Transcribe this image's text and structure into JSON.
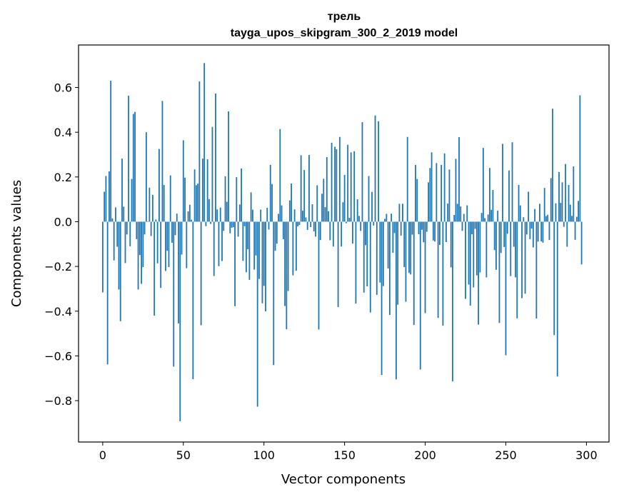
{
  "chart_data": {
    "type": "bar",
    "title_line1": "трель",
    "title_line2": "tayga_upos_skipgram_300_2_2019 model",
    "xlabel": "Vector components",
    "ylabel": "Components values",
    "xlim": [
      -15,
      314
    ],
    "ylim": [
      -0.985,
      0.79
    ],
    "xticks": [
      0,
      50,
      100,
      150,
      200,
      250,
      300
    ],
    "xtick_labels": [
      "0",
      "50",
      "100",
      "150",
      "200",
      "250",
      "300"
    ],
    "yticks": [
      -0.8,
      -0.6,
      -0.4,
      -0.2,
      0.0,
      0.2,
      0.4,
      0.6
    ],
    "ytick_labels": [
      "−0.8",
      "−0.6",
      "−0.4",
      "−0.2",
      "0.0",
      "0.2",
      "0.4",
      "0.6"
    ],
    "bar_color": "#1f77b4",
    "values": [
      -0.316,
      0.134,
      0.204,
      -0.638,
      0.225,
      0.63,
      0.015,
      -0.173,
      0.064,
      -0.112,
      -0.303,
      -0.445,
      0.282,
      0.067,
      -0.185,
      -0.057,
      0.563,
      -0.11,
      0.191,
      0.482,
      0.491,
      -0.078,
      -0.303,
      -0.149,
      -0.278,
      -0.203,
      -0.057,
      0.4,
      0.002,
      0.152,
      -0.064,
      0.12,
      -0.42,
      0.01,
      -0.186,
      0.325,
      -0.296,
      0.54,
      0.164,
      -0.22,
      -0.13,
      -0.203,
      0.207,
      -0.094,
      -0.648,
      -0.06,
      0.036,
      -0.455,
      -0.892,
      -0.147,
      0.364,
      0.197,
      -0.208,
      0.046,
      0.076,
      0.009,
      -0.704,
      0.234,
      0.163,
      0.17,
      0.627,
      -0.463,
      0.282,
      0.709,
      -0.02,
      0.279,
      0.101,
      -0.01,
      0.424,
      -0.243,
      0.573,
      0.055,
      -0.199,
      0.063,
      -0.176,
      -0.041,
      0.203,
      0.089,
      0.493,
      -0.052,
      -0.027,
      -0.024,
      -0.378,
      0.199,
      -0.067,
      0.077,
      0.238,
      -0.175,
      -0.02,
      -0.226,
      -0.123,
      -0.26,
      0.131,
      0.054,
      -0.214,
      -0.151,
      -0.827,
      -0.256,
      0.054,
      -0.365,
      -0.287,
      -0.401,
      0.062,
      -0.035,
      0.254,
      0.168,
      -0.641,
      -0.13,
      -0.098,
      0.035,
      0.414,
      0.073,
      -0.078,
      -0.377,
      -0.481,
      -0.31,
      0.095,
      0.171,
      -0.24,
      0.055,
      -0.219,
      -0.021,
      -0.015,
      0.297,
      0.049,
      0.231,
      0.019,
      -0.037,
      0.298,
      -0.024,
      0.078,
      -0.043,
      -0.067,
      0.163,
      -0.482,
      -0.082,
      0.125,
      0.192,
      0.065,
      0.289,
      0.047,
      -0.083,
      0.353,
      -0.111,
      0.335,
      0.324,
      -0.382,
      0.379,
      -0.111,
      0.087,
      0.209,
      -0.007,
      0.344,
      0.017,
      0.31,
      -0.098,
      0.315,
      -0.366,
      0.1,
      0.026,
      -0.041,
      0.445,
      -0.317,
      -0.105,
      -0.289,
      0.204,
      -0.406,
      0.133,
      -0.017,
      0.475,
      -0.327,
      0.449,
      -0.272,
      -0.685,
      -0.288,
      0.013,
      0.035,
      -0.209,
      -0.417,
      0.036,
      -0.139,
      -0.051,
      -0.705,
      -0.371,
      0.08,
      -0.062,
      0.08,
      -0.203,
      -0.358,
      0.379,
      -0.229,
      -0.236,
      -0.058,
      -0.462,
      0.254,
      0.191,
      -0.056,
      -0.661,
      -0.036,
      -0.092,
      -0.409,
      -0.045,
      0.176,
      0.24,
      0.31,
      -0.084,
      -0.089,
      0.262,
      -0.43,
      -0.104,
      0.254,
      -0.465,
      0.305,
      -0.091,
      0.081,
      0.233,
      -0.204,
      -0.714,
      0.03,
      0.281,
      0.08,
      0.378,
      0.068,
      -0.041,
      0.035,
      -0.345,
      0.073,
      -0.281,
      -0.375,
      -0.056,
      -0.294,
      -0.032,
      -0.24,
      -0.46,
      -0.227,
      0.039,
      0.33,
      0.016,
      -0.249,
      0.032,
      0.24,
      0.053,
      0.142,
      -0.127,
      -0.215,
      0.049,
      -0.453,
      -0.14,
      0.348,
      -0.113,
      -0.597,
      -0.054,
      0.229,
      -0.243,
      0.355,
      -0.112,
      -0.249,
      -0.432,
      0.164,
      0.073,
      -0.342,
      0.02,
      -0.322,
      -0.057,
      0.134,
      -0.078,
      -0.031,
      -0.115,
      0.057,
      -0.433,
      -0.089,
      0.08,
      -0.088,
      -0.094,
      0.151,
      0.025,
      0.031,
      -0.082,
      0.195,
      0.505,
      -0.507,
      0.082,
      -0.692,
      0.222,
      0.084,
      0.176,
      -0.023,
      0.258,
      -0.112,
      0.164,
      0.076,
      0.026,
      0.247,
      -0.081,
      0.022,
      0.093,
      0.565,
      -0.191
    ]
  }
}
